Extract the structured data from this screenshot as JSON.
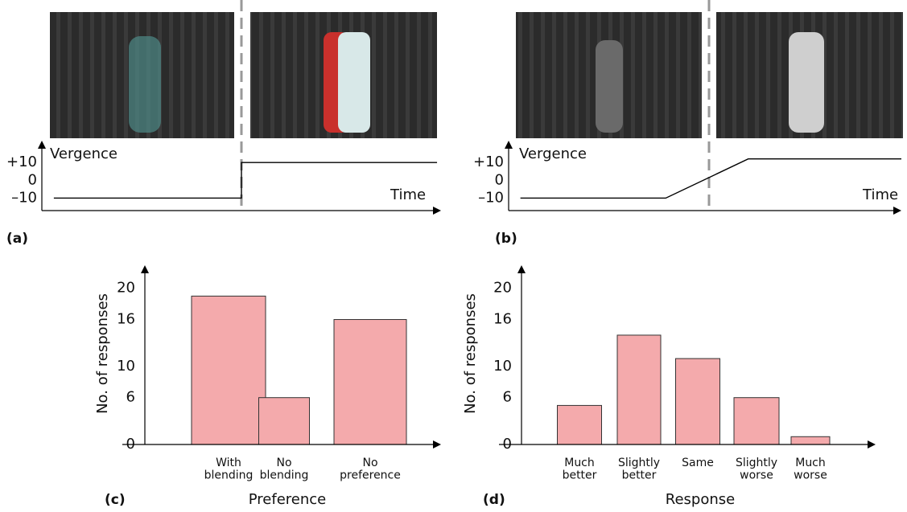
{
  "chart_data": [
    {
      "type": "line",
      "label": "(a)",
      "y_label": "Vergence",
      "x_label": "Time",
      "xlim": [
        0,
        1
      ],
      "ylim": [
        -17,
        20
      ],
      "yticks": [
        {
          "value": 10,
          "label": "+10"
        },
        0,
        {
          "value": -10,
          "label": "–10"
        }
      ],
      "series": [
        {
          "color": "#000000",
          "x": [
            0.03,
            0.5,
            0.5,
            0.99
          ],
          "values": [
            -10,
            -10,
            10,
            10
          ]
        }
      ]
    },
    {
      "type": "line",
      "label": "(b)",
      "y_label": "Vergence",
      "x_label": "Time",
      "xlim": [
        0,
        1
      ],
      "ylim": [
        -17,
        20
      ],
      "yticks": [
        {
          "value": 10,
          "label": "+10"
        },
        0,
        {
          "value": -10,
          "label": "–10"
        }
      ],
      "series": [
        {
          "color": "#000000",
          "x": [
            0.03,
            0.4,
            0.61,
            1
          ],
          "values": [
            -10,
            -10,
            12,
            12
          ]
        }
      ]
    },
    {
      "type": "bar",
      "label": "(c)",
      "y_label": "No. of responses",
      "x_label": "Preference",
      "categories": [
        "With\nblending",
        "No\nblending",
        "No\npreference"
      ],
      "values": [
        19,
        6,
        16
      ],
      "color": "#f4aaac",
      "ylim": [
        0,
        23
      ],
      "yticks": [
        0,
        6,
        10,
        16,
        20
      ]
    },
    {
      "type": "bar",
      "label": "(d)",
      "y_label": "No. of responses",
      "x_label": "Response",
      "categories": [
        "Much\nbetter",
        "Slightly\nbetter",
        "Same",
        "Slightly\nworse",
        "Much\nworse"
      ],
      "values": [
        5,
        14,
        11,
        6,
        1
      ],
      "color": "#f4aaac",
      "ylim": [
        0,
        23
      ],
      "yticks": [
        0,
        6,
        10,
        16,
        20
      ]
    }
  ]
}
